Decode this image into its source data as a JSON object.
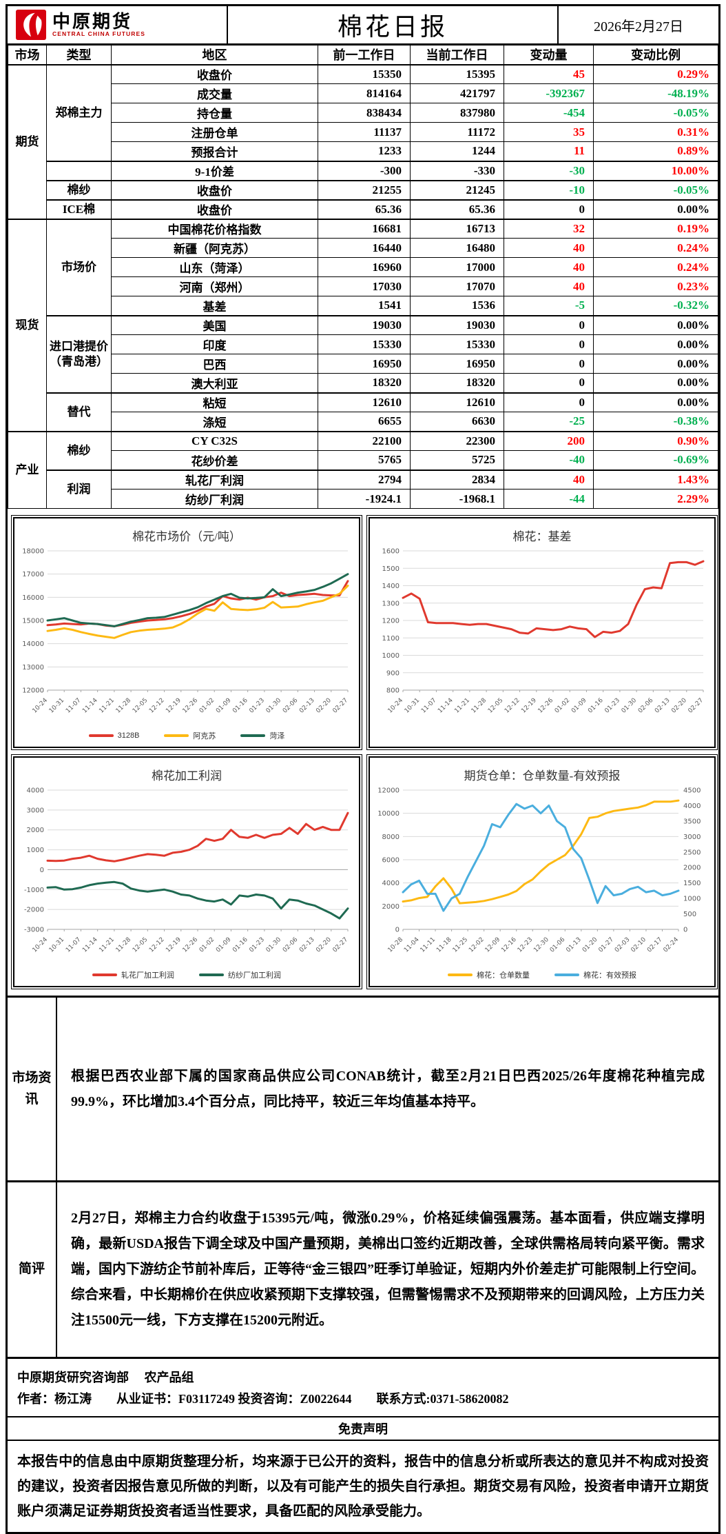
{
  "header": {
    "logo_cn": "中原期货",
    "logo_en": "CENTRAL CHINA FUTURES",
    "title": "棉花日报",
    "date": "2026年2月27日"
  },
  "table": {
    "columns": [
      "市场",
      "类型",
      "地区",
      "前一工作日",
      "当前工作日",
      "变动量",
      "变动比例"
    ],
    "rows": [
      {
        "market": "期货",
        "market_span": 8,
        "type": "郑棉主力",
        "type_span": 5,
        "name": "收盘价",
        "prev": "15350",
        "curr": "15395",
        "chg": "45",
        "chg_c": "up",
        "pct": "0.29%",
        "pct_c": "up"
      },
      {
        "name": "成交量",
        "prev": "814164",
        "curr": "421797",
        "chg": "-392367",
        "chg_c": "down",
        "pct": "-48.19%",
        "pct_c": "down"
      },
      {
        "name": "持仓量",
        "prev": "838434",
        "curr": "837980",
        "chg": "-454",
        "chg_c": "down",
        "pct": "-0.05%",
        "pct_c": "down"
      },
      {
        "name": "注册仓单",
        "prev": "11137",
        "curr": "11172",
        "chg": "35",
        "chg_c": "up",
        "pct": "0.31%",
        "pct_c": "up"
      },
      {
        "name": "预报合计",
        "prev": "1233",
        "curr": "1244",
        "chg": "11",
        "chg_c": "up",
        "pct": "0.89%",
        "pct_c": "up"
      },
      {
        "type": "",
        "type_span": 1,
        "name": "9-1价差",
        "prev": "-300",
        "curr": "-330",
        "chg": "-30",
        "chg_c": "down",
        "pct": "10.00%",
        "pct_c": "up",
        "sep": true
      },
      {
        "type": "棉纱",
        "type_span": 1,
        "name": "收盘价",
        "prev": "21255",
        "curr": "21245",
        "chg": "-10",
        "chg_c": "down",
        "pct": "-0.05%",
        "pct_c": "down",
        "sep": true
      },
      {
        "type": "ICE棉",
        "type_span": 1,
        "name": "收盘价",
        "prev": "65.36",
        "curr": "65.36",
        "chg": "0",
        "chg_c": "flat",
        "pct": "0.00%",
        "pct_c": "flat",
        "sep": true
      },
      {
        "market": "现货",
        "market_span": 11,
        "type": "市场价",
        "type_span": 5,
        "name": "中国棉花价格指数",
        "prev": "16681",
        "curr": "16713",
        "chg": "32",
        "chg_c": "up",
        "pct": "0.19%",
        "pct_c": "up",
        "sep": true
      },
      {
        "name": "新疆（阿克苏）",
        "prev": "16440",
        "curr": "16480",
        "chg": "40",
        "chg_c": "up",
        "pct": "0.24%",
        "pct_c": "up"
      },
      {
        "name": "山东（菏泽）",
        "prev": "16960",
        "curr": "17000",
        "chg": "40",
        "chg_c": "up",
        "pct": "0.24%",
        "pct_c": "up"
      },
      {
        "name": "河南（郑州）",
        "prev": "17030",
        "curr": "17070",
        "chg": "40",
        "chg_c": "up",
        "pct": "0.23%",
        "pct_c": "up"
      },
      {
        "name": "基差",
        "prev": "1541",
        "curr": "1536",
        "chg": "-5",
        "chg_c": "down",
        "pct": "-0.32%",
        "pct_c": "down"
      },
      {
        "type": "进口港提价\n（青岛港）",
        "type_span": 4,
        "name": "美国",
        "prev": "19030",
        "curr": "19030",
        "chg": "0",
        "chg_c": "flat",
        "pct": "0.00%",
        "pct_c": "flat",
        "sep": true
      },
      {
        "name": "印度",
        "prev": "15330",
        "curr": "15330",
        "chg": "0",
        "chg_c": "flat",
        "pct": "0.00%",
        "pct_c": "flat"
      },
      {
        "name": "巴西",
        "prev": "16950",
        "curr": "16950",
        "chg": "0",
        "chg_c": "flat",
        "pct": "0.00%",
        "pct_c": "flat"
      },
      {
        "name": "澳大利亚",
        "prev": "18320",
        "curr": "18320",
        "chg": "0",
        "chg_c": "flat",
        "pct": "0.00%",
        "pct_c": "flat"
      },
      {
        "type": "替代",
        "type_span": 2,
        "name": "粘短",
        "prev": "12610",
        "curr": "12610",
        "chg": "0",
        "chg_c": "flat",
        "pct": "0.00%",
        "pct_c": "flat",
        "sep": true
      },
      {
        "name": "涤短",
        "prev": "6655",
        "curr": "6630",
        "chg": "-25",
        "chg_c": "down",
        "pct": "-0.38%",
        "pct_c": "down"
      },
      {
        "market": "产业",
        "market_span": 4,
        "type": "棉纱",
        "type_span": 2,
        "name": "CY C32S",
        "prev": "22100",
        "curr": "22300",
        "chg": "200",
        "chg_c": "up",
        "pct": "0.90%",
        "pct_c": "up",
        "sep": true
      },
      {
        "name": "花纱价差",
        "prev": "5765",
        "curr": "5725",
        "chg": "-40",
        "chg_c": "down",
        "pct": "-0.69%",
        "pct_c": "down"
      },
      {
        "type": "利润",
        "type_span": 2,
        "name": "轧花厂利润",
        "prev": "2794",
        "curr": "2834",
        "chg": "40",
        "chg_c": "up",
        "pct": "1.43%",
        "pct_c": "up",
        "sep": true
      },
      {
        "name": "纺纱厂利润",
        "prev": "-1924.1",
        "curr": "-1968.1",
        "chg": "-44",
        "chg_c": "down",
        "pct": "2.29%",
        "pct_c": "up"
      }
    ]
  },
  "chart_data": [
    {
      "type": "line",
      "title": "棉花市场价（元/吨）",
      "labels": [
        "10-24",
        "10-31",
        "11-07",
        "11-14",
        "11-21",
        "11-28",
        "12-05",
        "12-12",
        "12-19",
        "12-26",
        "01-02",
        "01-09",
        "01-16",
        "01-23",
        "01-30",
        "02-06",
        "02-13",
        "02-20",
        "02-27"
      ],
      "ylim": [
        12000,
        18000
      ],
      "ystep": 1000,
      "legend": true,
      "grid": true,
      "legend_position": "bottom",
      "series": [
        {
          "name": "3128B",
          "color": "#e0392e",
          "values": [
            14800,
            14830,
            14870,
            14850,
            14830,
            14870,
            14850,
            14780,
            14750,
            14820,
            14900,
            14950,
            15000,
            15020,
            15050,
            15100,
            15180,
            15280,
            15420,
            15600,
            15720,
            16050,
            15950,
            15900,
            15980,
            15900,
            16000,
            16050,
            16200,
            16050,
            16100,
            16120,
            16150,
            16100,
            16080,
            16080,
            16700
          ]
        },
        {
          "name": "阿克苏",
          "color": "#fdb913",
          "values": [
            14550,
            14600,
            14660,
            14600,
            14500,
            14420,
            14350,
            14300,
            14250,
            14380,
            14500,
            14560,
            14600,
            14620,
            14650,
            14700,
            14850,
            15050,
            15300,
            15500,
            15420,
            15780,
            15500,
            15470,
            15450,
            15480,
            15550,
            15800,
            15560,
            15580,
            15600,
            15700,
            15780,
            15850,
            16000,
            16150,
            16500
          ]
        },
        {
          "name": "菏泽",
          "color": "#1f6a52",
          "values": [
            15000,
            15050,
            15100,
            15000,
            14900,
            14870,
            14850,
            14800,
            14750,
            14850,
            14950,
            15020,
            15100,
            15120,
            15150,
            15250,
            15350,
            15450,
            15570,
            15750,
            15900,
            16050,
            16150,
            15980,
            15950,
            15970,
            16000,
            16350,
            16050,
            16120,
            16200,
            16250,
            16320,
            16450,
            16600,
            16800,
            17000
          ]
        }
      ]
    },
    {
      "type": "line",
      "title": "棉花：基差",
      "labels": [
        "10-24",
        "10-31",
        "11-07",
        "11-14",
        "11-21",
        "11-28",
        "12-05",
        "12-12",
        "12-19",
        "12-26",
        "01-02",
        "01-09",
        "01-16",
        "01-23",
        "01-30",
        "02-06",
        "02-13",
        "02-20",
        "02-27"
      ],
      "ylim": [
        800,
        1600
      ],
      "ystep": 100,
      "legend": false,
      "grid": true,
      "series": [
        {
          "name": "基差",
          "color": "#e0392e",
          "values": [
            1330,
            1355,
            1325,
            1190,
            1185,
            1185,
            1185,
            1180,
            1175,
            1180,
            1180,
            1170,
            1160,
            1150,
            1130,
            1125,
            1155,
            1150,
            1145,
            1150,
            1165,
            1155,
            1150,
            1105,
            1135,
            1130,
            1140,
            1180,
            1290,
            1380,
            1390,
            1385,
            1530,
            1535,
            1535,
            1520,
            1540
          ]
        }
      ]
    },
    {
      "type": "line",
      "title": "棉花加工利润",
      "labels": [
        "10-24",
        "10-31",
        "11-07",
        "11-14",
        "11-21",
        "11-28",
        "12-05",
        "12-12",
        "12-19",
        "12-26",
        "01-02",
        "01-09",
        "01-16",
        "01-23",
        "01-30",
        "02-06",
        "02-13",
        "02-20",
        "02-27"
      ],
      "ylim": [
        -3000,
        4000
      ],
      "ystep": 1000,
      "legend": true,
      "grid": true,
      "legend_position": "bottom",
      "series": [
        {
          "name": "轧花厂加工利润",
          "color": "#e0392e",
          "values": [
            450,
            440,
            460,
            550,
            600,
            700,
            550,
            470,
            420,
            500,
            600,
            700,
            780,
            750,
            700,
            850,
            900,
            1000,
            1200,
            1550,
            1450,
            1550,
            2000,
            1650,
            1600,
            1750,
            1600,
            1750,
            1800,
            2100,
            1800,
            2300,
            2000,
            2150,
            2000,
            2000,
            2850
          ]
        },
        {
          "name": "纺纱厂加工利润",
          "color": "#1f6a52",
          "values": [
            -900,
            -880,
            -1000,
            -980,
            -900,
            -780,
            -700,
            -650,
            -620,
            -700,
            -950,
            -1050,
            -1100,
            -1050,
            -1000,
            -1100,
            -1250,
            -1300,
            -1450,
            -1550,
            -1600,
            -1500,
            -1750,
            -1300,
            -1350,
            -1250,
            -1300,
            -1450,
            -1950,
            -1500,
            -1550,
            -1700,
            -1800,
            -2000,
            -2200,
            -2450,
            -1950
          ]
        }
      ]
    },
    {
      "type": "line",
      "title": "期货仓单：仓单数量-有效预报",
      "labels": [
        "10-28",
        "11-04",
        "11-11",
        "11-18",
        "11-25",
        "12-02",
        "12-09",
        "12-16",
        "12-23",
        "12-30",
        "01-06",
        "01-13",
        "01-20",
        "01-27",
        "02-03",
        "02-10",
        "02-17",
        "02-24"
      ],
      "ylim": [
        0,
        12000
      ],
      "ystep": 2000,
      "y2lim": [
        0,
        4500
      ],
      "y2step": 500,
      "legend": true,
      "grid": true,
      "legend_position": "bottom",
      "series": [
        {
          "name": "棉花：仓单数量",
          "color": "#fdb913",
          "axis": "left",
          "values": [
            2400,
            2500,
            2700,
            2800,
            3700,
            4400,
            3500,
            2250,
            2300,
            2350,
            2450,
            2600,
            2800,
            3000,
            3300,
            3900,
            4300,
            5000,
            5600,
            6000,
            6400,
            7200,
            8200,
            9600,
            9700,
            10000,
            10200,
            10300,
            10400,
            10500,
            10700,
            11000,
            11000,
            11000,
            11100
          ]
        },
        {
          "name": "棉花：有效预报",
          "color": "#4aaede",
          "axis": "right",
          "values": [
            1200,
            1450,
            1575,
            1150,
            1150,
            600,
            1000,
            1150,
            1700,
            2200,
            2700,
            3400,
            3300,
            3700,
            4050,
            3900,
            4000,
            3750,
            4000,
            3500,
            3300,
            2600,
            2300,
            1600,
            850,
            1400,
            1100,
            1150,
            1300,
            1375,
            1200,
            1250,
            1100,
            1150,
            1250
          ]
        }
      ]
    }
  ],
  "sections": {
    "news_label": "市场资讯",
    "news_text": "根据巴西农业部下属的国家商品供应公司CONAB统计，截至2月21日巴西2025/26年度棉花种植完成99.9%，环比增加3.4个百分点，同比持平，较近三年均值基本持平。",
    "comment_label": "简评",
    "comment_text": "2月27日，郑棉主力合约收盘于15395元/吨，微涨0.29%，价格延续偏强震荡。基本面看，供应端支撑明确，最新USDA报告下调全球及中国产量预期，美棉出口签约近期改善，全球供需格局转向紧平衡。需求端，国内下游纺企节前补库后，正等待“金三银四”旺季订单验证，短期内外价差走扩可能限制上行空间。综合来看，中长期棉价在供应收紧预期下支撑较强，但需警惕需求不及预期带来的回调风险，上方压力关注15500元一线，下方支撑在15200元附近。"
  },
  "footer": {
    "dept_line": "中原期货研究咨询部　 农产品组",
    "author_line": "作者：杨江涛　　从业证书：F03117249 投资咨询：Z0022644　　联系方式:0371-58620082",
    "disclaimer_title": "免责声明",
    "disclaimer_text": "本报告中的信息由中原期货整理分析，均来源于已公开的资料，报告中的信息分析或所表达的意见并不构成对投资的建议，投资者因报告意见所做的判断，以及有可能产生的损失自行承担。期货交易有风险，投资者申请开立期货账户须满足证券期货投资者适当性要求，具备匹配的风险承受能力。"
  },
  "colors": {
    "up": "#ff0000",
    "down": "#00b050",
    "grid": "#d9d9d9"
  }
}
